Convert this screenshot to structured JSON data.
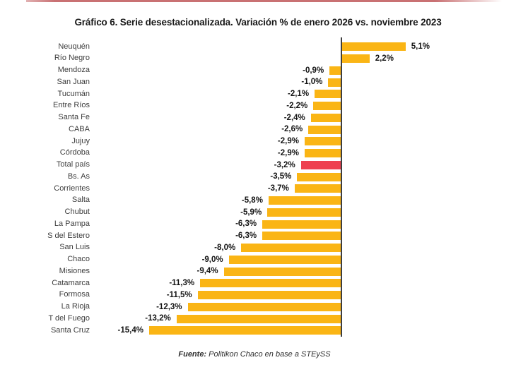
{
  "page": {
    "top_rule_color": "#c97173",
    "background_color": "#ffffff"
  },
  "chart_data": {
    "type": "bar",
    "orientation": "horizontal",
    "title": "Gráfico 6. Serie desestacionalizada. Variación % de enero 2026 vs. noviembre 2023",
    "source_label": "Fuente:",
    "source_text": "Politikon Chaco en base a STEySS",
    "categories": [
      "Neuquén",
      "Río Negro",
      "Mendoza",
      "San Juan",
      "Tucumán",
      "Entre Ríos",
      "Santa Fe",
      "CABA",
      "Jujuy",
      "Córdoba",
      "Total país",
      "Bs. As",
      "Corrientes",
      "Salta",
      "Chubut",
      "La Pampa",
      "S del Estero",
      "San Luis",
      "Chaco",
      "Misiones",
      "Catamarca",
      "Formosa",
      "La Rioja",
      "T del Fuego",
      "Santa Cruz"
    ],
    "values": [
      5.1,
      2.2,
      -0.9,
      -1.0,
      -2.1,
      -2.2,
      -2.4,
      -2.6,
      -2.9,
      -2.9,
      -3.2,
      -3.5,
      -3.7,
      -5.8,
      -5.9,
      -6.3,
      -6.3,
      -8.0,
      -9.0,
      -9.4,
      -11.3,
      -11.5,
      -12.3,
      -13.2,
      -15.4
    ],
    "value_labels": [
      "5,1%",
      "2,2%",
      "-0,9%",
      "-1,0%",
      "-2,1%",
      "-2,2%",
      "-2,4%",
      "-2,6%",
      "-2,9%",
      "-2,9%",
      "-3,2%",
      "-3,5%",
      "-3,7%",
      "-5,8%",
      "-5,9%",
      "-6,3%",
      "-6,3%",
      "-8,0%",
      "-9,0%",
      "-9,4%",
      "-11,3%",
      "-11,5%",
      "-12,3%",
      "-13,2%",
      "-15,4%"
    ],
    "bar_color": "#FAB515",
    "highlight_color": "#EE4050",
    "highlight_category": "Total país",
    "xlim": [
      -15.4,
      5.1
    ],
    "grid": false,
    "legend": false,
    "value_decimal_separator": ","
  }
}
